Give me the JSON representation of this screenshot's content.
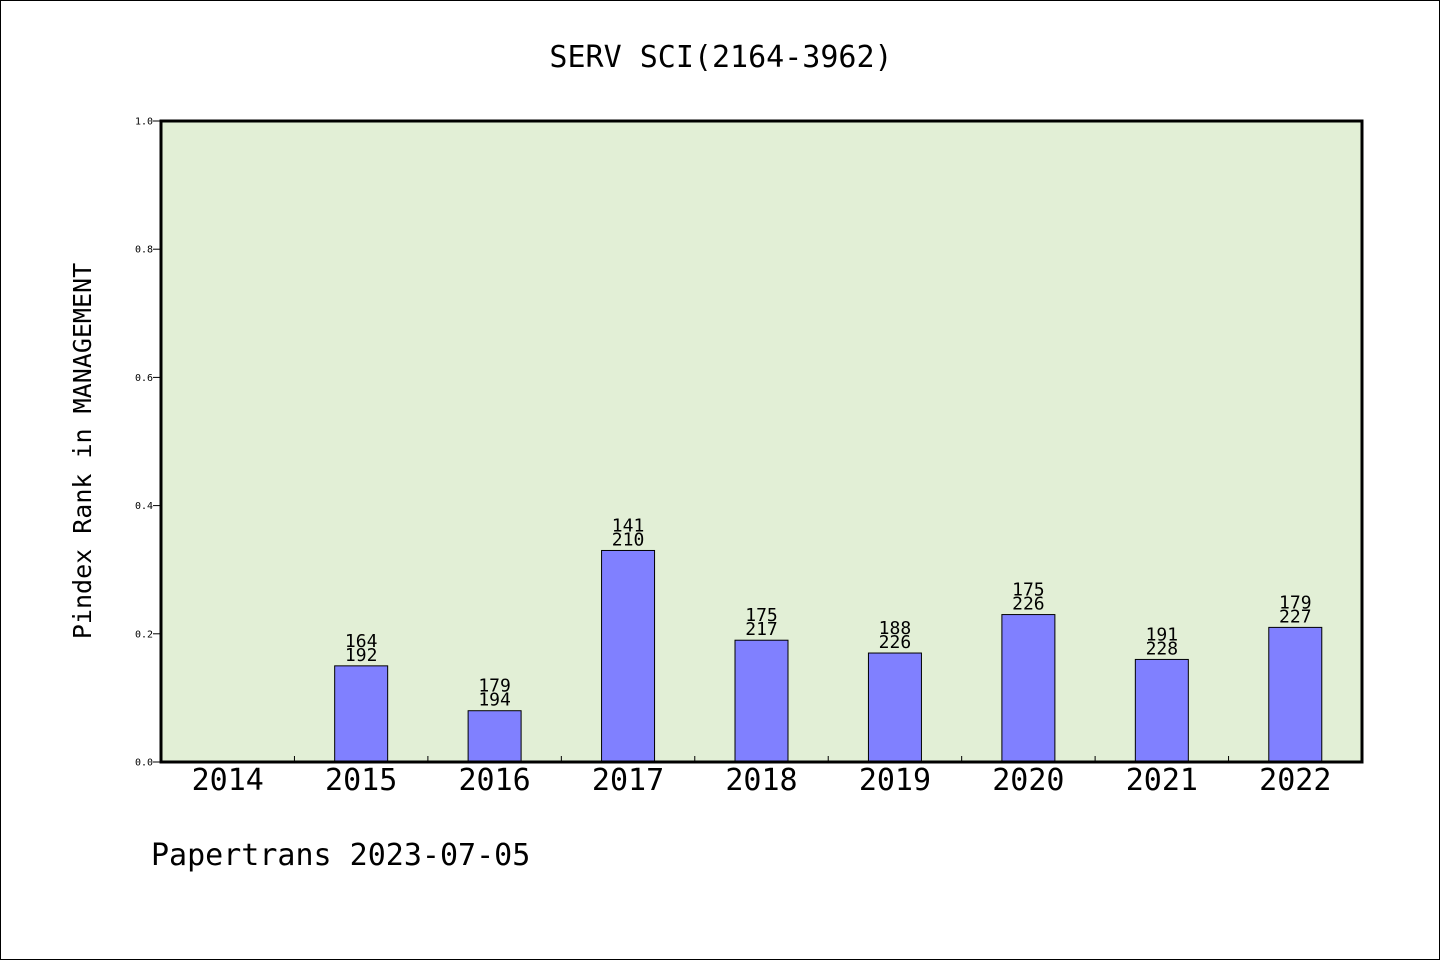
{
  "chart_data": {
    "type": "bar",
    "title": "SERV SCI(2164-3962)",
    "xlabel": "",
    "ylabel": "Pindex Rank in MANAGEMENT",
    "categories": [
      "2014",
      "2015",
      "2016",
      "2017",
      "2018",
      "2019",
      "2020",
      "2021",
      "2022"
    ],
    "values": [
      null,
      0.15,
      0.08,
      0.33,
      0.19,
      0.17,
      0.23,
      0.16,
      0.21
    ],
    "rank_labels": [
      null,
      "164",
      "179",
      "141",
      "175",
      "188",
      "175",
      "191",
      "179"
    ],
    "total_labels": [
      null,
      "192",
      "194",
      "210",
      "217",
      "226",
      "226",
      "228",
      "227"
    ],
    "ylim": [
      0,
      1.0
    ],
    "yticks": [
      "0.0",
      "0.2",
      "0.4",
      "0.6",
      "0.8",
      "1.0"
    ],
    "grid": false,
    "legend": "none",
    "colors": {
      "plot_background": "#e2efd6",
      "bar_fill": "#8080ff",
      "bar_edge": "#000000",
      "axis": "#000000"
    }
  },
  "footer": {
    "text": "Papertrans 2023-07-05"
  }
}
